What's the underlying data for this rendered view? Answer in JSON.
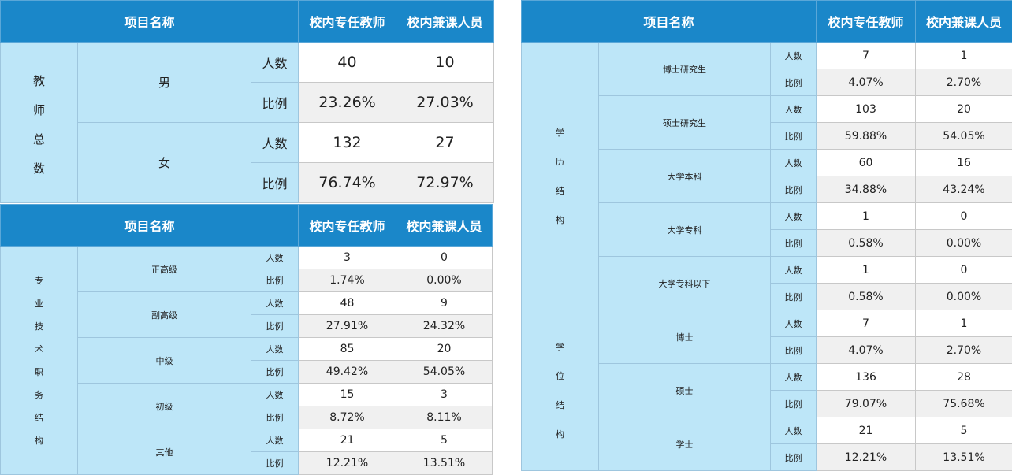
{
  "headers": {
    "item": "项目名称",
    "fulltime": "校内专任教师",
    "parttime": "校内兼课人员"
  },
  "row_labels": {
    "count": "人数",
    "ratio": "比例"
  },
  "total": {
    "group": [
      "教",
      "师",
      "总",
      "数"
    ],
    "rows": [
      {
        "name": "男",
        "count": [
          "40",
          "10"
        ],
        "ratio": [
          "23.26%",
          "27.03%"
        ]
      },
      {
        "name": "女",
        "count": [
          "132",
          "27"
        ],
        "ratio": [
          "76.74%",
          "72.97%"
        ]
      }
    ]
  },
  "title_structure": {
    "group": [
      "专",
      "业",
      "技",
      "术",
      "职",
      "务",
      "结",
      "构"
    ],
    "rows": [
      {
        "name": "正高级",
        "count": [
          "3",
          "0"
        ],
        "ratio": [
          "1.74%",
          "0.00%"
        ]
      },
      {
        "name": "副高级",
        "count": [
          "48",
          "9"
        ],
        "ratio": [
          "27.91%",
          "24.32%"
        ]
      },
      {
        "name": "中级",
        "count": [
          "85",
          "20"
        ],
        "ratio": [
          "49.42%",
          "54.05%"
        ]
      },
      {
        "name": "初级",
        "count": [
          "15",
          "3"
        ],
        "ratio": [
          "8.72%",
          "8.11%"
        ]
      },
      {
        "name": "其他",
        "count": [
          "21",
          "5"
        ],
        "ratio": [
          "12.21%",
          "13.51%"
        ]
      }
    ]
  },
  "education_structure": {
    "group": [
      "学",
      "历",
      "结",
      "构"
    ],
    "rows": [
      {
        "name": "博士研究生",
        "count": [
          "7",
          "1"
        ],
        "ratio": [
          "4.07%",
          "2.70%"
        ]
      },
      {
        "name": "硕士研究生",
        "count": [
          "103",
          "20"
        ],
        "ratio": [
          "59.88%",
          "54.05%"
        ]
      },
      {
        "name": "大学本科",
        "count": [
          "60",
          "16"
        ],
        "ratio": [
          "34.88%",
          "43.24%"
        ]
      },
      {
        "name": "大学专科",
        "count": [
          "1",
          "0"
        ],
        "ratio": [
          "0.58%",
          "0.00%"
        ]
      },
      {
        "name": "大学专科以下",
        "count": [
          "1",
          "0"
        ],
        "ratio": [
          "0.58%",
          "0.00%"
        ]
      }
    ]
  },
  "degree_structure": {
    "group": [
      "学",
      "位",
      "结",
      "构"
    ],
    "rows": [
      {
        "name": "博士",
        "count": [
          "7",
          "1"
        ],
        "ratio": [
          "4.07%",
          "2.70%"
        ]
      },
      {
        "name": "硕士",
        "count": [
          "136",
          "28"
        ],
        "ratio": [
          "79.07%",
          "75.68%"
        ]
      },
      {
        "name": "学士",
        "count": [
          "21",
          "5"
        ],
        "ratio": [
          "12.21%",
          "13.51%"
        ]
      }
    ]
  },
  "colors": {
    "header_bg": "#1a87c9",
    "label_bg": "#bde6f8",
    "alt_row_bg": "#f0f0f0"
  }
}
